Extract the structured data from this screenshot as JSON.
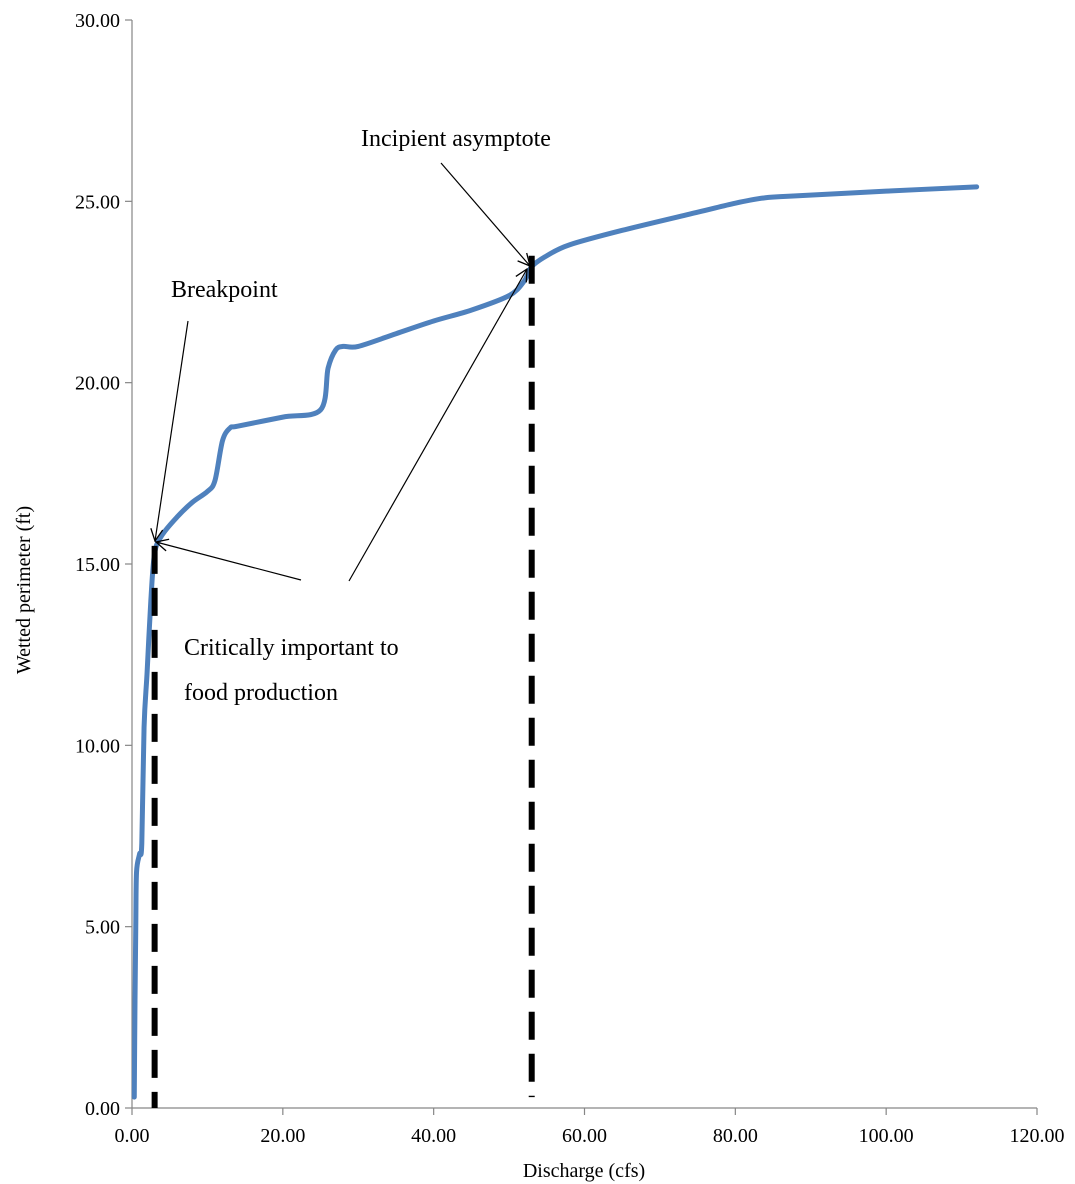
{
  "chart_data": {
    "type": "line",
    "title": "",
    "xlabel": "Discharge (cfs)",
    "ylabel": "Wetted perimeter (ft)",
    "xlim": [
      0,
      120
    ],
    "ylim": [
      0,
      30
    ],
    "x_ticks": [
      0,
      20,
      40,
      60,
      80,
      100,
      120
    ],
    "y_ticks": [
      0,
      5,
      10,
      15,
      20,
      25,
      30
    ],
    "x_tick_labels": [
      "0.00",
      "20.00",
      "40.00",
      "60.00",
      "80.00",
      "100.00",
      "120.00"
    ],
    "y_tick_labels": [
      "0.00",
      "5.00",
      "10.00",
      "15.00",
      "20.00",
      "25.00",
      "30.00"
    ],
    "grid": false,
    "legend": "none",
    "series": [
      {
        "color": "#4f81bd",
        "points": [
          [
            0.3,
            0.3
          ],
          [
            0.4,
            3.0
          ],
          [
            0.5,
            5.0
          ],
          [
            0.6,
            6.5
          ],
          [
            1.0,
            7.0
          ],
          [
            1.3,
            7.3
          ],
          [
            1.6,
            10.5
          ],
          [
            2.0,
            12.0
          ],
          [
            2.5,
            14.0
          ],
          [
            3.0,
            15.3
          ],
          [
            4.0,
            15.8
          ],
          [
            6.0,
            16.3
          ],
          [
            8.0,
            16.7
          ],
          [
            10.0,
            17.0
          ],
          [
            11.0,
            17.3
          ],
          [
            12.0,
            18.4
          ],
          [
            13.0,
            18.75
          ],
          [
            14.0,
            18.8
          ],
          [
            20.0,
            19.05
          ],
          [
            25.0,
            19.25
          ],
          [
            26.0,
            20.4
          ],
          [
            27.0,
            20.9
          ],
          [
            28.0,
            21.0
          ],
          [
            30.0,
            21.0
          ],
          [
            35.0,
            21.35
          ],
          [
            40.0,
            21.7
          ],
          [
            45.0,
            22.0
          ],
          [
            50.0,
            22.4
          ],
          [
            52.0,
            22.8
          ],
          [
            53.0,
            23.2
          ],
          [
            55.0,
            23.5
          ],
          [
            58.0,
            23.8
          ],
          [
            65.0,
            24.2
          ],
          [
            75.0,
            24.7
          ],
          [
            80.0,
            24.95
          ],
          [
            84.0,
            25.1
          ],
          [
            88.0,
            25.15
          ],
          [
            100.0,
            25.28
          ],
          [
            112.0,
            25.4
          ]
        ]
      }
    ],
    "reference_lines": [
      {
        "name": "breakpoint",
        "x": 3.0,
        "y_from": 0.0,
        "y_to": 15.5,
        "style": "dashed",
        "color": "#000000"
      },
      {
        "name": "incipient-asymptote",
        "x": 53.0,
        "y_from": 0.3,
        "y_to": 23.5,
        "style": "dashed",
        "color": "#000000"
      }
    ],
    "annotations": [
      {
        "name": "breakpoint",
        "text": "Breakpoint",
        "arrow_to": [
          3.0,
          15.5
        ]
      },
      {
        "name": "incipient-asymptote",
        "text": "Incipient asymptote",
        "arrow_to": [
          53.0,
          23.2
        ]
      },
      {
        "name": "critically-important",
        "text_lines": [
          "Critically important to",
          "food production"
        ],
        "arrows_to": [
          [
            3.0,
            15.5
          ],
          [
            53.0,
            23.0
          ]
        ]
      }
    ]
  }
}
